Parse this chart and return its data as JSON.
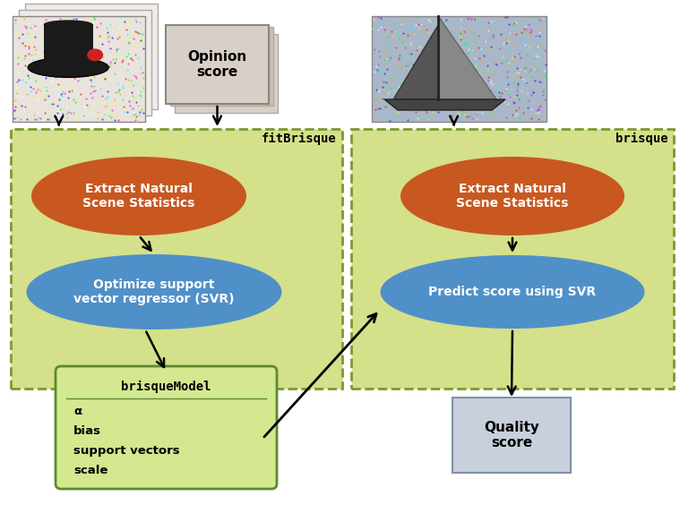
{
  "bg_color": "#ffffff",
  "green_box_color": "#d4e08a",
  "green_box_edge": "#7a9a30",
  "orange_ellipse_color": "#c85820",
  "blue_ellipse_color": "#5090c8",
  "bm_box_color": "#d4e890",
  "bm_box_edge": "#5a8a30",
  "qs_box_color": "#c8d0dc",
  "qs_box_edge": "#8090a8",
  "opinion_bg": "#d8d0c8",
  "opinion_edge": "#a09888",
  "fitbrisque_label": "fitBrisque",
  "brisque_label": "brisque",
  "extract_label": "Extract Natural\nScene Statistics",
  "optimize_label": "Optimize support\nvector regressor (SVR)",
  "predict_label": "Predict score using SVR",
  "bm_title": "brisqueModel",
  "bm_fields": [
    "α",
    "bias",
    "support vectors",
    "scale"
  ],
  "opinion_label": "Opinion\nscore",
  "quality_label": "Quality\nscore"
}
